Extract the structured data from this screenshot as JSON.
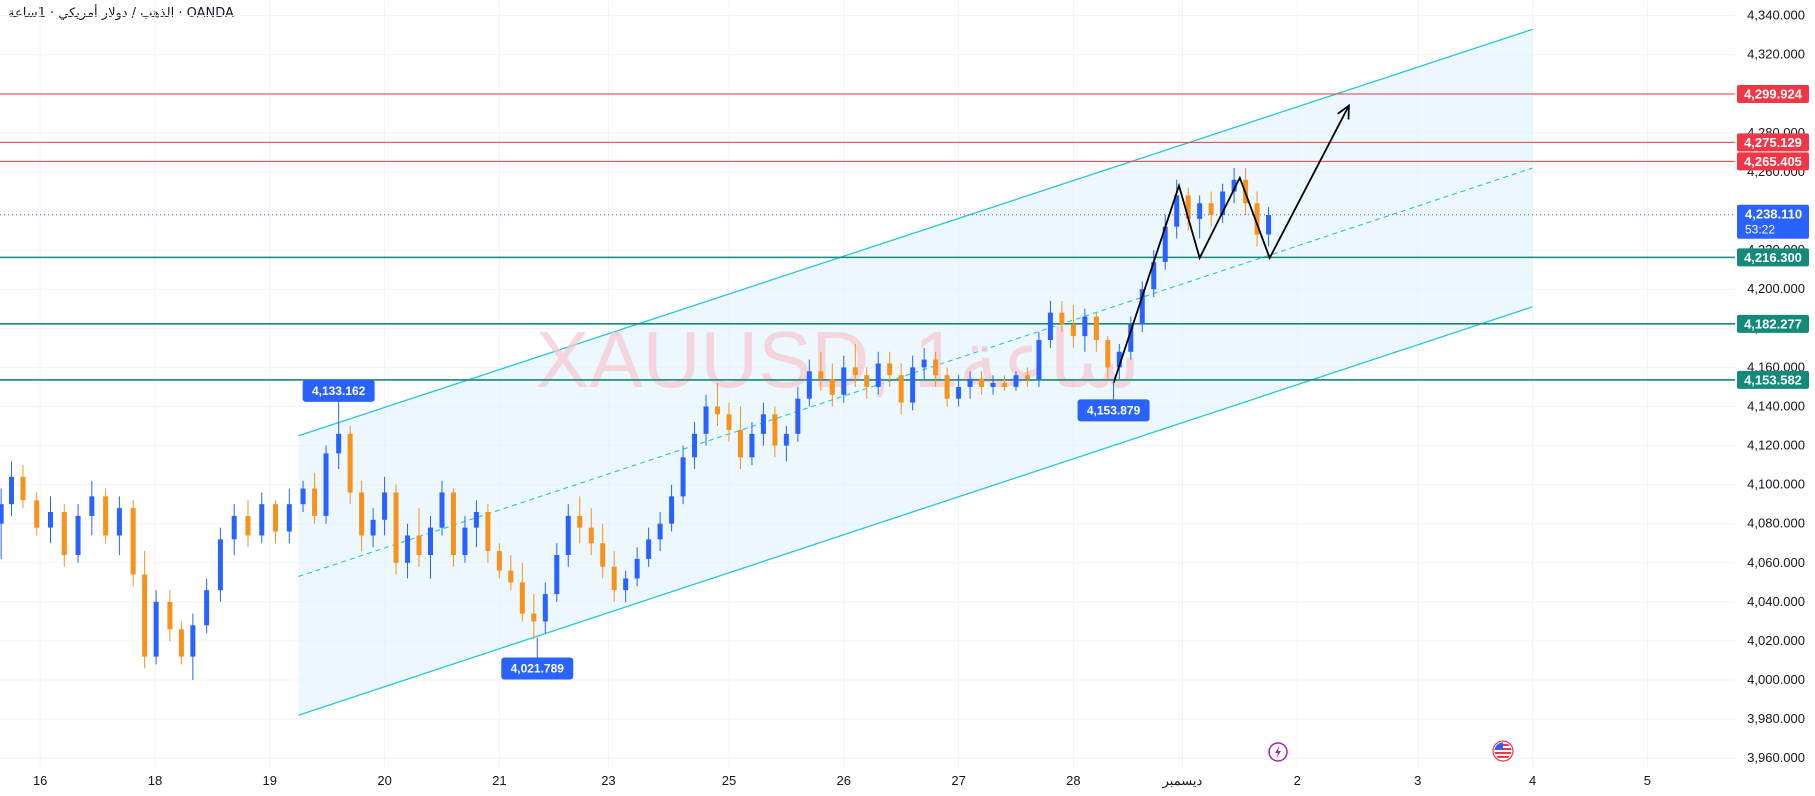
{
  "header": {
    "symbol_title": "OANDA · الذهب / دولار أمريكي · 1ساعة"
  },
  "watermark": {
    "text": "XAUUSD, 1ساعة"
  },
  "colors": {
    "up": "#2962ff",
    "down": "#f7931a",
    "channel": "#26c6da",
    "channel_fill": "#e3f2fd",
    "resistance": "#f23645",
    "support": "#138a7a",
    "current": "#2962ff",
    "pattern": "#000000",
    "grid": "#f0f3fa"
  },
  "chart_data": {
    "type": "candlestick",
    "title": "XAUUSD, 1ساعة",
    "ylim": [
      3955,
      4348
    ],
    "y_ticks": [
      "3,960.000",
      "3,980.000",
      "4,000.000",
      "4,020.000",
      "4,040.000",
      "4,060.000",
      "4,080.000",
      "4,100.000",
      "4,120.000",
      "4,140.000",
      "4,160.000",
      "4,180.000",
      "4,200.000",
      "4,220.000",
      "4,240.000",
      "4,260.000",
      "4,280.000",
      "4,300.000",
      "4,320.000",
      "4,340.000"
    ],
    "x_ticks": [
      "16",
      "18",
      "19",
      "20",
      "21",
      "23",
      "25",
      "26",
      "27",
      "28",
      "ديسمبر",
      "2",
      "3",
      "4",
      "5"
    ],
    "x_domain": [
      0,
      15
    ],
    "x_tick_positions": [
      0.35,
      1.35,
      2.35,
      3.35,
      4.35,
      5.3,
      6.35,
      7.35,
      8.35,
      9.35,
      10.3,
      11.3,
      12.35,
      13.35,
      14.35
    ],
    "price_levels": [
      {
        "label": "4,299.924",
        "value": 4299.924,
        "kind": "resistance"
      },
      {
        "label": "4,275.129",
        "value": 4275.129,
        "kind": "resistance"
      },
      {
        "label": "4,265.405",
        "value": 4265.405,
        "kind": "resistance"
      },
      {
        "label": "4,216.300",
        "value": 4216.3,
        "kind": "support"
      },
      {
        "label": "4,182.277",
        "value": 4182.277,
        "kind": "support"
      },
      {
        "label": "4,153.582",
        "value": 4153.582,
        "kind": "support"
      }
    ],
    "current_price": {
      "label": "4,238.110",
      "countdown": "53:22",
      "value": 4238.11
    },
    "callouts": [
      {
        "label": "4,133.162",
        "x": 2.95,
        "y": 4133.162,
        "placement": "above"
      },
      {
        "label": "4,021.789",
        "x": 4.68,
        "y": 4021.789,
        "placement": "below"
      },
      {
        "label": "4,153.879",
        "x": 9.7,
        "y": 4153.879,
        "placement": "below"
      }
    ],
    "channel": {
      "upper": [
        [
          2.6,
          4125
        ],
        [
          13.35,
          4333
        ]
      ],
      "lower": [
        [
          2.6,
          3982
        ],
        [
          13.35,
          4191
        ]
      ],
      "mid": [
        [
          2.6,
          4053
        ],
        [
          13.35,
          4262
        ]
      ]
    },
    "pattern_path": [
      [
        9.7,
        4152
      ],
      [
        10.27,
        4253
      ],
      [
        10.45,
        4216
      ],
      [
        10.8,
        4257
      ],
      [
        11.06,
        4216
      ],
      [
        11.75,
        4294
      ]
    ],
    "candles_ohlc": [
      [
        0.01,
        4080,
        4098,
        4062,
        4090
      ],
      [
        0.1,
        4090,
        4112,
        4084,
        4104
      ],
      [
        0.2,
        4104,
        4110,
        4088,
        4092
      ],
      [
        0.32,
        4092,
        4096,
        4074,
        4078
      ],
      [
        0.44,
        4078,
        4094,
        4070,
        4086
      ],
      [
        0.56,
        4086,
        4090,
        4058,
        4064
      ],
      [
        0.68,
        4064,
        4090,
        4060,
        4084
      ],
      [
        0.8,
        4084,
        4102,
        4074,
        4094
      ],
      [
        0.92,
        4094,
        4098,
        4070,
        4074
      ],
      [
        1.04,
        4074,
        4094,
        4064,
        4088
      ],
      [
        1.16,
        4088,
        4092,
        4048,
        4054
      ],
      [
        1.26,
        4054,
        4066,
        4006,
        4012
      ],
      [
        1.36,
        4012,
        4046,
        4008,
        4040
      ],
      [
        1.48,
        4040,
        4046,
        4020,
        4026
      ],
      [
        1.58,
        4026,
        4030,
        4008,
        4012
      ],
      [
        1.68,
        4012,
        4034,
        4000,
        4028
      ],
      [
        1.8,
        4028,
        4052,
        4024,
        4046
      ],
      [
        1.92,
        4046,
        4078,
        4040,
        4072
      ],
      [
        2.04,
        4072,
        4090,
        4064,
        4084
      ],
      [
        2.16,
        4084,
        4092,
        4068,
        4074
      ],
      [
        2.28,
        4074,
        4096,
        4070,
        4090
      ],
      [
        2.4,
        4090,
        4092,
        4070,
        4076
      ],
      [
        2.52,
        4076,
        4098,
        4070,
        4090
      ],
      [
        2.64,
        4090,
        4102,
        4086,
        4098
      ],
      [
        2.74,
        4098,
        4106,
        4080,
        4084
      ],
      [
        2.84,
        4084,
        4120,
        4080,
        4116
      ],
      [
        2.95,
        4116,
        4133,
        4108,
        4126
      ],
      [
        3.05,
        4126,
        4130,
        4090,
        4096
      ],
      [
        3.15,
        4096,
        4102,
        4066,
        4074
      ],
      [
        3.25,
        4074,
        4088,
        4068,
        4082
      ],
      [
        3.35,
        4082,
        4104,
        4074,
        4096
      ],
      [
        3.45,
        4096,
        4100,
        4054,
        4060
      ],
      [
        3.55,
        4060,
        4080,
        4052,
        4074
      ],
      [
        3.65,
        4074,
        4088,
        4058,
        4064
      ],
      [
        3.75,
        4064,
        4084,
        4052,
        4078
      ],
      [
        3.85,
        4078,
        4102,
        4074,
        4096
      ],
      [
        3.95,
        4096,
        4098,
        4058,
        4064
      ],
      [
        4.05,
        4064,
        4084,
        4060,
        4078
      ],
      [
        4.15,
        4078,
        4092,
        4068,
        4086
      ],
      [
        4.25,
        4086,
        4090,
        4060,
        4066
      ],
      [
        4.35,
        4066,
        4070,
        4052,
        4056
      ],
      [
        4.45,
        4056,
        4064,
        4046,
        4050
      ],
      [
        4.55,
        4050,
        4060,
        4030,
        4034
      ],
      [
        4.65,
        4034,
        4044,
        4021,
        4030
      ],
      [
        4.75,
        4030,
        4050,
        4024,
        4044
      ],
      [
        4.85,
        4044,
        4070,
        4040,
        4064
      ],
      [
        4.95,
        4064,
        4090,
        4058,
        4084
      ],
      [
        5.05,
        4084,
        4094,
        4070,
        4078
      ],
      [
        5.15,
        4078,
        4088,
        4064,
        4070
      ],
      [
        5.25,
        4070,
        4080,
        4052,
        4058
      ],
      [
        5.35,
        4058,
        4066,
        4040,
        4046
      ],
      [
        5.45,
        4046,
        4056,
        4040,
        4052
      ],
      [
        5.55,
        4052,
        4068,
        4048,
        4062
      ],
      [
        5.65,
        4062,
        4078,
        4058,
        4072
      ],
      [
        5.75,
        4072,
        4086,
        4066,
        4080
      ],
      [
        5.85,
        4080,
        4100,
        4076,
        4094
      ],
      [
        5.95,
        4094,
        4120,
        4090,
        4114
      ],
      [
        6.05,
        4114,
        4132,
        4108,
        4126
      ],
      [
        6.15,
        4126,
        4146,
        4120,
        4140
      ],
      [
        6.25,
        4140,
        4152,
        4130,
        4136
      ],
      [
        6.35,
        4136,
        4142,
        4122,
        4128
      ],
      [
        6.45,
        4128,
        4140,
        4108,
        4114
      ],
      [
        6.55,
        4114,
        4132,
        4110,
        4126
      ],
      [
        6.65,
        4126,
        4142,
        4120,
        4136
      ],
      [
        6.75,
        4136,
        4140,
        4114,
        4120
      ],
      [
        6.85,
        4120,
        4130,
        4112,
        4126
      ],
      [
        6.95,
        4126,
        4150,
        4122,
        4144
      ],
      [
        7.05,
        4144,
        4164,
        4140,
        4158
      ],
      [
        7.15,
        4158,
        4168,
        4148,
        4154
      ],
      [
        7.25,
        4154,
        4162,
        4140,
        4146
      ],
      [
        7.35,
        4146,
        4166,
        4142,
        4160
      ],
      [
        7.45,
        4160,
        4172,
        4150,
        4156
      ],
      [
        7.55,
        4156,
        4160,
        4144,
        4150
      ],
      [
        7.65,
        4150,
        4168,
        4146,
        4162
      ],
      [
        7.75,
        4162,
        4168,
        4150,
        4156
      ],
      [
        7.85,
        4156,
        4162,
        4136,
        4142
      ],
      [
        7.95,
        4142,
        4166,
        4138,
        4160
      ],
      [
        8.05,
        4160,
        4170,
        4154,
        4164
      ],
      [
        8.15,
        4164,
        4168,
        4150,
        4156
      ],
      [
        8.25,
        4156,
        4160,
        4140,
        4144
      ],
      [
        8.35,
        4144,
        4156,
        4140,
        4150
      ],
      [
        8.45,
        4150,
        4158,
        4144,
        4154
      ],
      [
        8.55,
        4154,
        4158,
        4146,
        4150
      ],
      [
        8.65,
        4150,
        4156,
        4146,
        4152
      ],
      [
        8.75,
        4152,
        4156,
        4148,
        4150
      ],
      [
        8.85,
        4150,
        4158,
        4148,
        4156
      ],
      [
        8.95,
        4156,
        4160,
        4150,
        4154
      ],
      [
        9.05,
        4154,
        4178,
        4150,
        4174
      ],
      [
        9.15,
        4174,
        4194,
        4170,
        4188
      ],
      [
        9.25,
        4188,
        4194,
        4178,
        4182
      ],
      [
        9.35,
        4182,
        4192,
        4170,
        4176
      ],
      [
        9.45,
        4176,
        4190,
        4168,
        4186
      ],
      [
        9.55,
        4186,
        4188,
        4168,
        4174
      ],
      [
        9.65,
        4174,
        4176,
        4154,
        4160
      ],
      [
        9.75,
        4160,
        4172,
        4154,
        4168
      ],
      [
        9.85,
        4168,
        4186,
        4164,
        4182
      ],
      [
        9.95,
        4182,
        4204,
        4178,
        4200
      ],
      [
        10.05,
        4200,
        4220,
        4196,
        4214
      ],
      [
        10.15,
        4214,
        4238,
        4210,
        4232
      ],
      [
        10.25,
        4232,
        4256,
        4226,
        4248
      ],
      [
        10.35,
        4248,
        4252,
        4230,
        4236
      ],
      [
        10.45,
        4236,
        4248,
        4226,
        4244
      ],
      [
        10.55,
        4244,
        4250,
        4232,
        4238
      ],
      [
        10.65,
        4238,
        4254,
        4234,
        4250
      ],
      [
        10.75,
        4250,
        4262,
        4244,
        4256
      ],
      [
        10.85,
        4256,
        4262,
        4238,
        4244
      ],
      [
        10.95,
        4244,
        4250,
        4222,
        4228
      ],
      [
        11.05,
        4228,
        4242,
        4222,
        4238
      ]
    ]
  }
}
